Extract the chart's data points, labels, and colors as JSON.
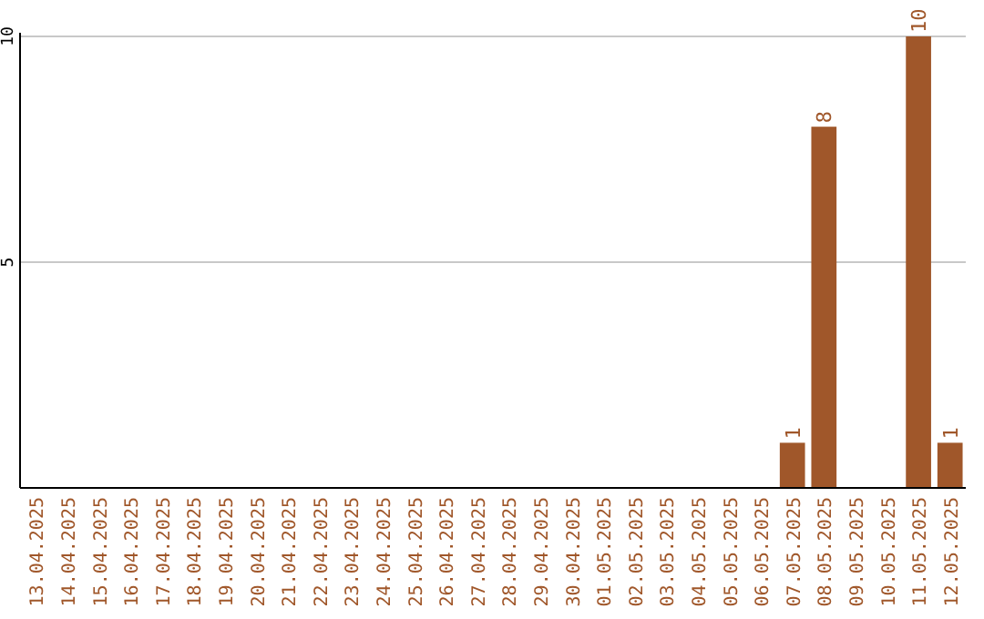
{
  "chart_data": {
    "type": "bar",
    "categories": [
      "13.04.2025",
      "14.04.2025",
      "15.04.2025",
      "16.04.2025",
      "17.04.2025",
      "18.04.2025",
      "19.04.2025",
      "20.04.2025",
      "21.04.2025",
      "22.04.2025",
      "23.04.2025",
      "24.04.2025",
      "25.04.2025",
      "26.04.2025",
      "27.04.2025",
      "28.04.2025",
      "29.04.2025",
      "30.04.2025",
      "01.05.2025",
      "02.05.2025",
      "03.05.2025",
      "04.05.2025",
      "05.05.2025",
      "06.05.2025",
      "07.05.2025",
      "08.05.2025",
      "09.05.2025",
      "10.05.2025",
      "11.05.2025",
      "12.05.2025"
    ],
    "values": [
      0,
      0,
      0,
      0,
      0,
      0,
      0,
      0,
      0,
      0,
      0,
      0,
      0,
      0,
      0,
      0,
      0,
      0,
      0,
      0,
      0,
      0,
      0,
      0,
      1,
      8,
      0,
      0,
      10,
      1
    ],
    "value_labels": [
      null,
      null,
      null,
      null,
      null,
      null,
      null,
      null,
      null,
      null,
      null,
      null,
      null,
      null,
      null,
      null,
      null,
      null,
      null,
      null,
      null,
      null,
      null,
      null,
      "1",
      "8",
      null,
      null,
      "10",
      "1"
    ],
    "color": "#a0572a",
    "ylim": [
      0,
      10
    ],
    "yticks": [
      {
        "value": 0,
        "label": null
      },
      5,
      10
    ],
    "grid": "y"
  }
}
